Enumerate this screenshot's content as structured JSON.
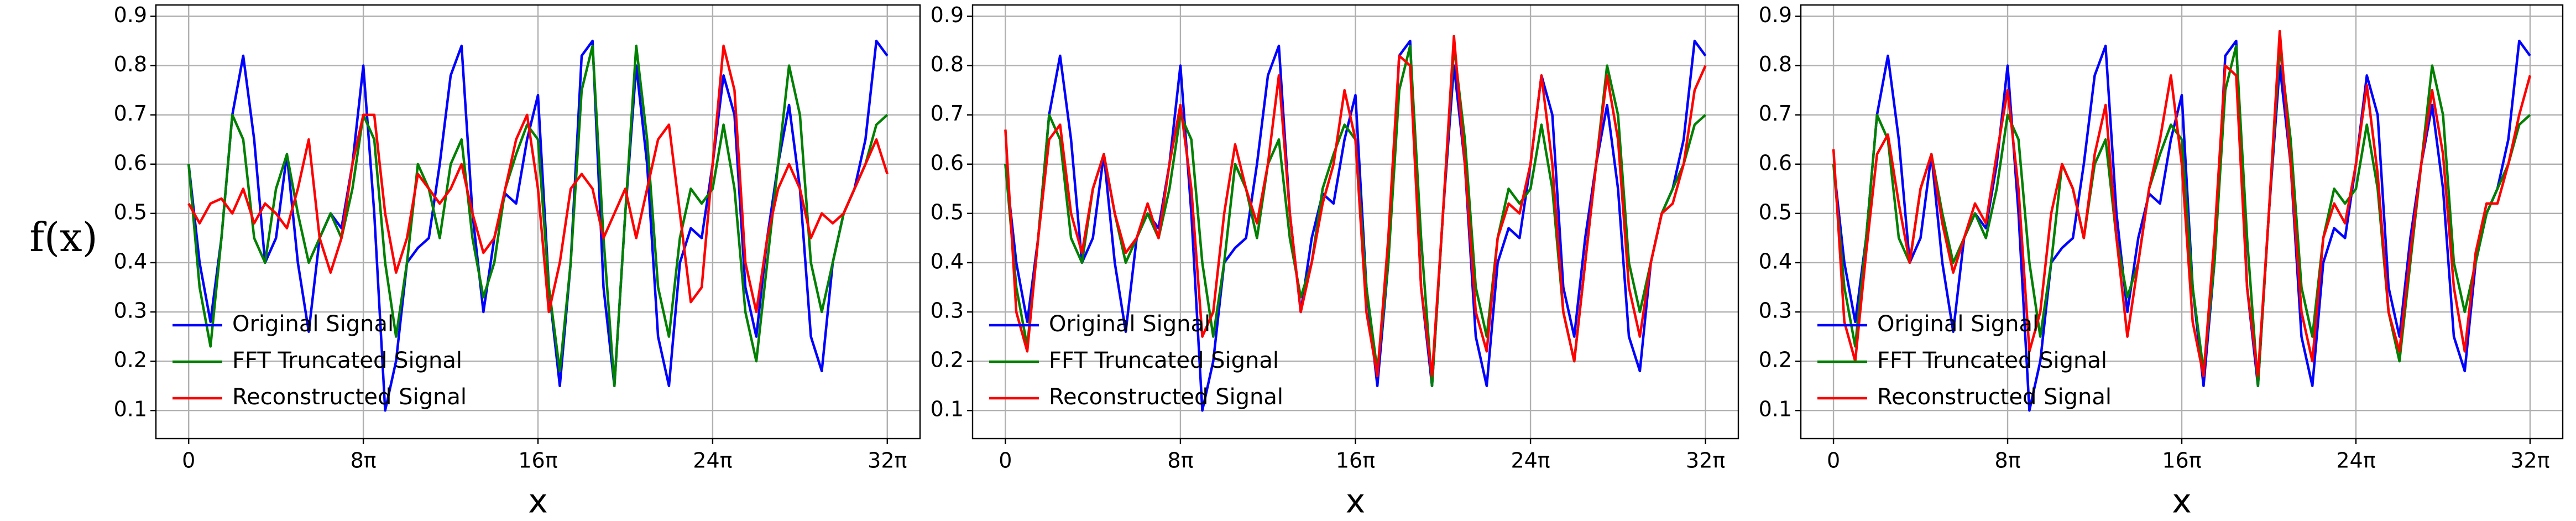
{
  "chart_data": [
    {
      "type": "line",
      "ylabel": "f(x)",
      "xlabel": "x",
      "x": [
        0,
        0.5,
        1,
        1.5,
        2,
        2.5,
        3,
        3.5,
        4,
        4.5,
        5,
        5.5,
        6,
        6.5,
        7,
        7.5,
        8,
        8.5,
        9,
        9.5,
        10,
        10.5,
        11,
        11.5,
        12,
        12.5,
        13,
        13.5,
        14,
        14.5,
        15,
        15.5,
        16,
        16.5,
        17,
        17.5,
        18,
        18.5,
        19,
        19.5,
        20,
        20.5,
        21,
        21.5,
        22,
        22.5,
        23,
        23.5,
        24,
        24.5,
        25,
        25.5,
        26,
        26.5,
        27,
        27.5,
        28,
        28.5,
        29,
        29.5,
        30,
        30.5,
        31,
        31.5,
        32
      ],
      "series": [
        {
          "name": "Original Signal",
          "color": "#0000ff",
          "values": [
            0.6,
            0.4,
            0.28,
            0.45,
            0.7,
            0.82,
            0.65,
            0.4,
            0.45,
            0.62,
            0.4,
            0.26,
            0.45,
            0.5,
            0.47,
            0.6,
            0.8,
            0.5,
            0.1,
            0.2,
            0.4,
            0.43,
            0.45,
            0.6,
            0.78,
            0.84,
            0.5,
            0.3,
            0.45,
            0.54,
            0.52,
            0.65,
            0.74,
            0.35,
            0.15,
            0.4,
            0.82,
            0.85,
            0.35,
            0.15,
            0.5,
            0.8,
            0.6,
            0.25,
            0.15,
            0.4,
            0.47,
            0.45,
            0.6,
            0.78,
            0.7,
            0.35,
            0.25,
            0.45,
            0.6,
            0.72,
            0.55,
            0.25,
            0.18,
            0.4,
            0.5,
            0.55,
            0.65,
            0.85,
            0.82
          ]
        },
        {
          "name": "FFT Truncated Signal",
          "color": "#008000",
          "values": [
            0.6,
            0.35,
            0.23,
            0.45,
            0.7,
            0.65,
            0.45,
            0.4,
            0.55,
            0.62,
            0.5,
            0.4,
            0.45,
            0.5,
            0.45,
            0.55,
            0.7,
            0.65,
            0.4,
            0.25,
            0.4,
            0.6,
            0.55,
            0.45,
            0.6,
            0.65,
            0.45,
            0.33,
            0.4,
            0.55,
            0.62,
            0.68,
            0.65,
            0.35,
            0.18,
            0.4,
            0.75,
            0.84,
            0.45,
            0.15,
            0.5,
            0.84,
            0.65,
            0.35,
            0.25,
            0.45,
            0.55,
            0.52,
            0.55,
            0.68,
            0.55,
            0.3,
            0.2,
            0.4,
            0.6,
            0.8,
            0.7,
            0.4,
            0.3,
            0.4,
            0.5,
            0.55,
            0.6,
            0.68,
            0.7
          ]
        },
        {
          "name": "Reconstructed Signal",
          "color": "#ff0000",
          "values": [
            0.52,
            0.48,
            0.52,
            0.53,
            0.5,
            0.55,
            0.48,
            0.52,
            0.5,
            0.47,
            0.55,
            0.65,
            0.45,
            0.38,
            0.45,
            0.6,
            0.7,
            0.7,
            0.5,
            0.38,
            0.45,
            0.58,
            0.55,
            0.52,
            0.55,
            0.6,
            0.5,
            0.42,
            0.45,
            0.55,
            0.65,
            0.7,
            0.55,
            0.3,
            0.4,
            0.55,
            0.58,
            0.55,
            0.45,
            0.5,
            0.55,
            0.45,
            0.55,
            0.65,
            0.68,
            0.5,
            0.32,
            0.35,
            0.6,
            0.84,
            0.75,
            0.4,
            0.3,
            0.45,
            0.55,
            0.6,
            0.55,
            0.45,
            0.5,
            0.48,
            0.5,
            0.55,
            0.6,
            0.65,
            0.58
          ]
        }
      ],
      "xlim": [
        -1.5,
        33.5
      ],
      "ylim": [
        0.043,
        0.923
      ],
      "xticks": [
        0,
        {
          "value": 8,
          "label": "8π"
        },
        {
          "value": 16,
          "label": "16π"
        },
        {
          "value": 24,
          "label": "24π"
        },
        {
          "value": 32,
          "label": "32π"
        }
      ],
      "yticks": [
        0.1,
        0.2,
        0.3,
        0.4,
        0.5,
        0.6,
        0.7,
        0.8,
        0.9
      ],
      "grid": true,
      "legend": "lower left"
    },
    {
      "type": "line",
      "xlabel": "x",
      "x": [
        0,
        0.5,
        1,
        1.5,
        2,
        2.5,
        3,
        3.5,
        4,
        4.5,
        5,
        5.5,
        6,
        6.5,
        7,
        7.5,
        8,
        8.5,
        9,
        9.5,
        10,
        10.5,
        11,
        11.5,
        12,
        12.5,
        13,
        13.5,
        14,
        14.5,
        15,
        15.5,
        16,
        16.5,
        17,
        17.5,
        18,
        18.5,
        19,
        19.5,
        20,
        20.5,
        21,
        21.5,
        22,
        22.5,
        23,
        23.5,
        24,
        24.5,
        25,
        25.5,
        26,
        26.5,
        27,
        27.5,
        28,
        28.5,
        29,
        29.5,
        30,
        30.5,
        31,
        31.5,
        32
      ],
      "series": [
        {
          "name": "Original Signal",
          "color": "#0000ff",
          "values": [
            0.6,
            0.4,
            0.28,
            0.45,
            0.7,
            0.82,
            0.65,
            0.4,
            0.45,
            0.62,
            0.4,
            0.26,
            0.45,
            0.5,
            0.47,
            0.6,
            0.8,
            0.5,
            0.1,
            0.2,
            0.4,
            0.43,
            0.45,
            0.6,
            0.78,
            0.84,
            0.5,
            0.3,
            0.45,
            0.54,
            0.52,
            0.65,
            0.74,
            0.35,
            0.15,
            0.4,
            0.82,
            0.85,
            0.35,
            0.15,
            0.5,
            0.8,
            0.6,
            0.25,
            0.15,
            0.4,
            0.47,
            0.45,
            0.6,
            0.78,
            0.7,
            0.35,
            0.25,
            0.45,
            0.6,
            0.72,
            0.55,
            0.25,
            0.18,
            0.4,
            0.5,
            0.55,
            0.65,
            0.85,
            0.82
          ]
        },
        {
          "name": "FFT Truncated Signal",
          "color": "#008000",
          "values": [
            0.6,
            0.35,
            0.23,
            0.45,
            0.7,
            0.65,
            0.45,
            0.4,
            0.55,
            0.62,
            0.5,
            0.4,
            0.45,
            0.5,
            0.45,
            0.55,
            0.7,
            0.65,
            0.4,
            0.25,
            0.4,
            0.6,
            0.55,
            0.45,
            0.6,
            0.65,
            0.45,
            0.33,
            0.4,
            0.55,
            0.62,
            0.68,
            0.65,
            0.35,
            0.18,
            0.4,
            0.75,
            0.84,
            0.45,
            0.15,
            0.5,
            0.84,
            0.65,
            0.35,
            0.25,
            0.45,
            0.55,
            0.52,
            0.55,
            0.68,
            0.55,
            0.3,
            0.2,
            0.4,
            0.6,
            0.8,
            0.7,
            0.4,
            0.3,
            0.4,
            0.5,
            0.55,
            0.6,
            0.68,
            0.7
          ]
        },
        {
          "name": "Reconstructed Signal",
          "color": "#ff0000",
          "values": [
            0.67,
            0.3,
            0.22,
            0.45,
            0.65,
            0.68,
            0.5,
            0.42,
            0.55,
            0.62,
            0.5,
            0.42,
            0.45,
            0.52,
            0.45,
            0.6,
            0.72,
            0.55,
            0.25,
            0.3,
            0.5,
            0.64,
            0.55,
            0.48,
            0.6,
            0.78,
            0.5,
            0.3,
            0.4,
            0.52,
            0.6,
            0.75,
            0.65,
            0.3,
            0.17,
            0.45,
            0.82,
            0.8,
            0.35,
            0.17,
            0.5,
            0.86,
            0.6,
            0.3,
            0.22,
            0.45,
            0.52,
            0.5,
            0.6,
            0.78,
            0.6,
            0.3,
            0.2,
            0.4,
            0.6,
            0.78,
            0.65,
            0.35,
            0.25,
            0.4,
            0.5,
            0.52,
            0.6,
            0.75,
            0.8
          ]
        }
      ],
      "xlim": [
        -1.5,
        33.5
      ],
      "ylim": [
        0.043,
        0.923
      ],
      "xticks": [
        0,
        {
          "value": 8,
          "label": "8π"
        },
        {
          "value": 16,
          "label": "16π"
        },
        {
          "value": 24,
          "label": "24π"
        },
        {
          "value": 32,
          "label": "32π"
        }
      ],
      "yticks": [
        0.1,
        0.2,
        0.3,
        0.4,
        0.5,
        0.6,
        0.7,
        0.8,
        0.9
      ],
      "grid": true,
      "legend": "lower left"
    },
    {
      "type": "line",
      "xlabel": "x",
      "x": [
        0,
        0.5,
        1,
        1.5,
        2,
        2.5,
        3,
        3.5,
        4,
        4.5,
        5,
        5.5,
        6,
        6.5,
        7,
        7.5,
        8,
        8.5,
        9,
        9.5,
        10,
        10.5,
        11,
        11.5,
        12,
        12.5,
        13,
        13.5,
        14,
        14.5,
        15,
        15.5,
        16,
        16.5,
        17,
        17.5,
        18,
        18.5,
        19,
        19.5,
        20,
        20.5,
        21,
        21.5,
        22,
        22.5,
        23,
        23.5,
        24,
        24.5,
        25,
        25.5,
        26,
        26.5,
        27,
        27.5,
        28,
        28.5,
        29,
        29.5,
        30,
        30.5,
        31,
        31.5,
        32
      ],
      "series": [
        {
          "name": "Original Signal",
          "color": "#0000ff",
          "values": [
            0.6,
            0.4,
            0.28,
            0.45,
            0.7,
            0.82,
            0.65,
            0.4,
            0.45,
            0.62,
            0.4,
            0.26,
            0.45,
            0.5,
            0.47,
            0.6,
            0.8,
            0.5,
            0.1,
            0.2,
            0.4,
            0.43,
            0.45,
            0.6,
            0.78,
            0.84,
            0.5,
            0.3,
            0.45,
            0.54,
            0.52,
            0.65,
            0.74,
            0.35,
            0.15,
            0.4,
            0.82,
            0.85,
            0.35,
            0.15,
            0.5,
            0.8,
            0.6,
            0.25,
            0.15,
            0.4,
            0.47,
            0.45,
            0.6,
            0.78,
            0.7,
            0.35,
            0.25,
            0.45,
            0.6,
            0.72,
            0.55,
            0.25,
            0.18,
            0.4,
            0.5,
            0.55,
            0.65,
            0.85,
            0.82
          ]
        },
        {
          "name": "FFT Truncated Signal",
          "color": "#008000",
          "values": [
            0.6,
            0.35,
            0.23,
            0.45,
            0.7,
            0.65,
            0.45,
            0.4,
            0.55,
            0.62,
            0.5,
            0.4,
            0.45,
            0.5,
            0.45,
            0.55,
            0.7,
            0.65,
            0.4,
            0.25,
            0.4,
            0.6,
            0.55,
            0.45,
            0.6,
            0.65,
            0.45,
            0.33,
            0.4,
            0.55,
            0.62,
            0.68,
            0.65,
            0.35,
            0.18,
            0.4,
            0.75,
            0.84,
            0.45,
            0.15,
            0.5,
            0.84,
            0.65,
            0.35,
            0.25,
            0.45,
            0.55,
            0.52,
            0.55,
            0.68,
            0.55,
            0.3,
            0.2,
            0.4,
            0.6,
            0.8,
            0.7,
            0.4,
            0.3,
            0.4,
            0.5,
            0.55,
            0.6,
            0.68,
            0.7
          ]
        },
        {
          "name": "Reconstructed Signal",
          "color": "#ff0000",
          "values": [
            0.63,
            0.28,
            0.2,
            0.42,
            0.62,
            0.66,
            0.52,
            0.4,
            0.55,
            0.62,
            0.48,
            0.38,
            0.45,
            0.52,
            0.48,
            0.62,
            0.75,
            0.55,
            0.22,
            0.3,
            0.5,
            0.6,
            0.55,
            0.45,
            0.62,
            0.72,
            0.45,
            0.25,
            0.4,
            0.55,
            0.65,
            0.78,
            0.6,
            0.28,
            0.17,
            0.45,
            0.8,
            0.78,
            0.35,
            0.17,
            0.5,
            0.87,
            0.6,
            0.3,
            0.2,
            0.45,
            0.52,
            0.48,
            0.6,
            0.76,
            0.58,
            0.3,
            0.22,
            0.42,
            0.6,
            0.75,
            0.62,
            0.35,
            0.22,
            0.42,
            0.52,
            0.52,
            0.6,
            0.7,
            0.78
          ]
        }
      ],
      "xlim": [
        -1.5,
        33.5
      ],
      "ylim": [
        0.043,
        0.923
      ],
      "xticks": [
        0,
        {
          "value": 8,
          "label": "8π"
        },
        {
          "value": 16,
          "label": "16π"
        },
        {
          "value": 24,
          "label": "24π"
        },
        {
          "value": 32,
          "label": "32π"
        }
      ],
      "yticks": [
        0.1,
        0.2,
        0.3,
        0.4,
        0.5,
        0.6,
        0.7,
        0.8,
        0.9
      ],
      "grid": true,
      "legend": "lower left"
    }
  ]
}
